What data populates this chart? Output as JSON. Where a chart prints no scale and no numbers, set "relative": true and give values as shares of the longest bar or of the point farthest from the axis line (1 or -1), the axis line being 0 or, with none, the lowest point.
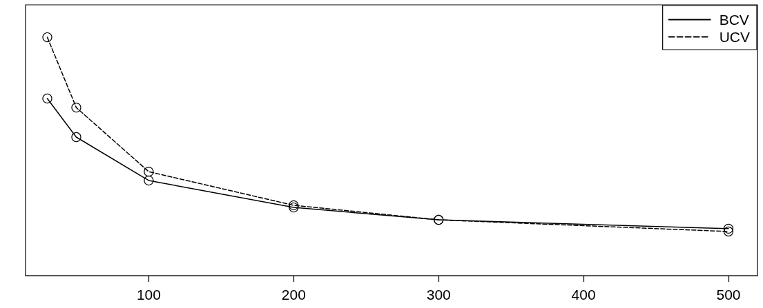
{
  "chart_data": {
    "type": "line",
    "relative": true,
    "xlim": [
      15,
      520
    ],
    "xticks": [
      100,
      200,
      300,
      400,
      500
    ],
    "tick_labels": "x",
    "grid": false,
    "legend": "top right",
    "marker": "circle",
    "series": [
      {
        "name": "BCV",
        "color": "#000000",
        "line_style": "solid",
        "x": [
          30,
          50,
          100,
          200,
          300,
          500
        ],
        "values": [
          0.743,
          0.581,
          0.399,
          0.286,
          0.234,
          0.197
        ]
      },
      {
        "name": "UCV",
        "color": "#000000",
        "line_style": "dashed",
        "x": [
          30,
          50,
          100,
          200,
          300,
          500
        ],
        "values": [
          1,
          0.705,
          0.436,
          0.295,
          0.234,
          0.185
        ]
      }
    ]
  }
}
